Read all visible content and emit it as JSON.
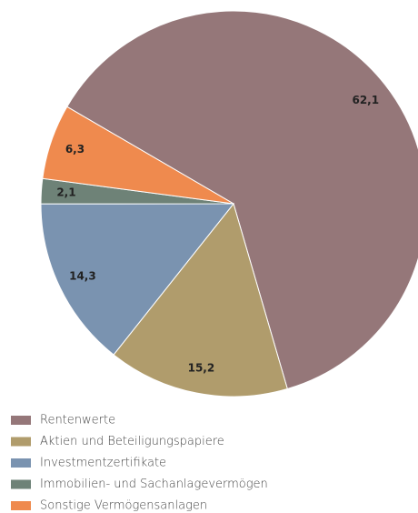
{
  "chart_data": {
    "type": "pie",
    "categories": [
      "Rentenwerte",
      "Aktien und Beteiligungspapiere",
      "Investmentzertifikate",
      "Immobilien- und Sachanlagevermögen",
      "Sonstige Vermögensanlagen"
    ],
    "values": [
      62.1,
      15.2,
      14.3,
      2.1,
      6.3
    ],
    "value_labels": [
      "62,1",
      "15,2",
      "14,3",
      "2,1",
      "6,3"
    ],
    "colors": [
      "#957779",
      "#b09c6c",
      "#7a93b0",
      "#6e8277",
      "#ef8a4e"
    ],
    "legend": "bottom"
  }
}
